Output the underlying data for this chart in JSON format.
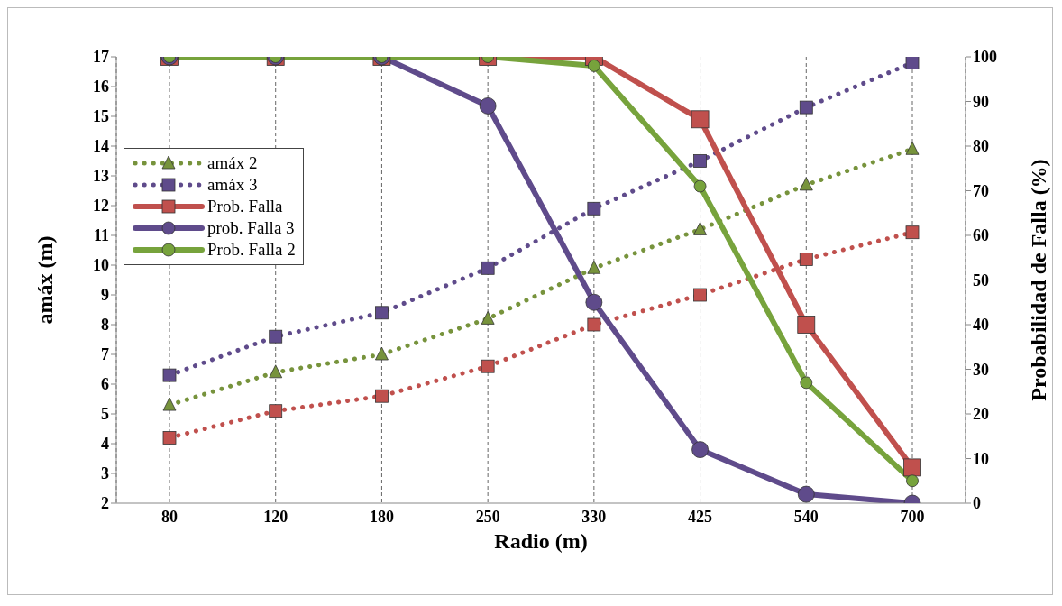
{
  "chart_data": {
    "type": "line",
    "xlabel": "Radio (m)",
    "ylabel": "amáx (m)",
    "y2label": "Probabilidad de Falla (%)",
    "categories": [
      "80",
      "120",
      "180",
      "250",
      "330",
      "425",
      "540",
      "700"
    ],
    "series": [
      {
        "values": [
          4.2,
          5.1,
          5.6,
          6.6,
          8.0,
          9.0,
          10.2,
          11.1
        ],
        "color": "#c0504d",
        "marker": "square",
        "line_style": "dotted"
      },
      {
        "name": "amáx 2",
        "values": [
          5.3,
          6.4,
          7.0,
          8.2,
          9.9,
          11.2,
          12.7,
          13.9
        ],
        "color": "#77933c",
        "marker": "triangle",
        "line_style": "dotted"
      },
      {
        "name": "amáx 3",
        "values": [
          6.3,
          7.6,
          8.4,
          9.9,
          11.9,
          13.5,
          15.3,
          16.8
        ],
        "color": "#5f4b8b",
        "marker": "square",
        "line_style": "dotted"
      },
      {
        "name": "Prob. Falla",
        "values": [
          100,
          100,
          100,
          100,
          100,
          86,
          40,
          8
        ],
        "color": "#c0504d",
        "marker": "square",
        "line_style": "solid",
        "axis": "y2"
      },
      {
        "name": "prob. Falla 3",
        "values": [
          100,
          100,
          100,
          89,
          45,
          12,
          2,
          0
        ],
        "color": "#5f4b8b",
        "marker": "circle",
        "line_style": "solid",
        "axis": "y2"
      },
      {
        "name": "Prob. Falla 2",
        "values": [
          100,
          100,
          100,
          100,
          98,
          71,
          27,
          5
        ],
        "color": "#77a33c",
        "marker": "circle",
        "line_style": "solid",
        "axis": "y2"
      }
    ],
    "ylim": [
      2,
      17
    ],
    "yticks": [
      2,
      3,
      4,
      5,
      6,
      7,
      8,
      9,
      10,
      11,
      12,
      13,
      14,
      15,
      16,
      17
    ],
    "y2lim": [
      0,
      100
    ],
    "y2ticks": [
      0,
      10,
      20,
      30,
      40,
      50,
      60,
      70,
      80,
      90,
      100
    ],
    "grid": "x",
    "legend": "left"
  }
}
